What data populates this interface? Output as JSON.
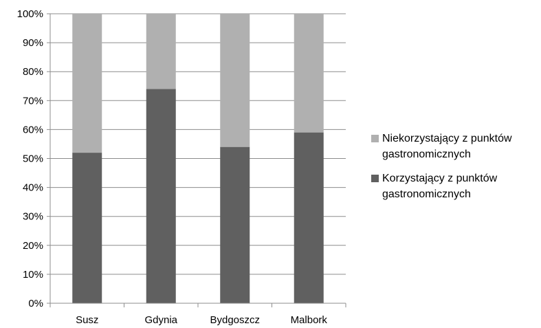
{
  "chart_data": {
    "type": "bar",
    "stacked": true,
    "normalized_percent": true,
    "categories": [
      "Susz",
      "Gdynia",
      "Bydgoszcz",
      "Malbork"
    ],
    "series": [
      {
        "name": "Korzystający z punktów gastronomicznych",
        "values": [
          52,
          74,
          54,
          59
        ],
        "color": "#606060"
      },
      {
        "name": "Niekorzystający z punktów gastronomicznych",
        "values": [
          48,
          26,
          46,
          41
        ],
        "color": "#b0b0b0"
      }
    ],
    "y_ticks": [
      "0%",
      "10%",
      "20%",
      "30%",
      "40%",
      "50%",
      "60%",
      "70%",
      "80%",
      "90%",
      "100%"
    ],
    "ylim": [
      0,
      100
    ],
    "title": "",
    "xlabel": "",
    "ylabel": "",
    "grid": true,
    "legend_position": "right",
    "legend": [
      {
        "label": "Niekorzystający z punktów gastronomicznych",
        "color": "#b0b0b0"
      },
      {
        "label": "Korzystający z punktów gastronomicznych",
        "color": "#606060"
      }
    ]
  }
}
